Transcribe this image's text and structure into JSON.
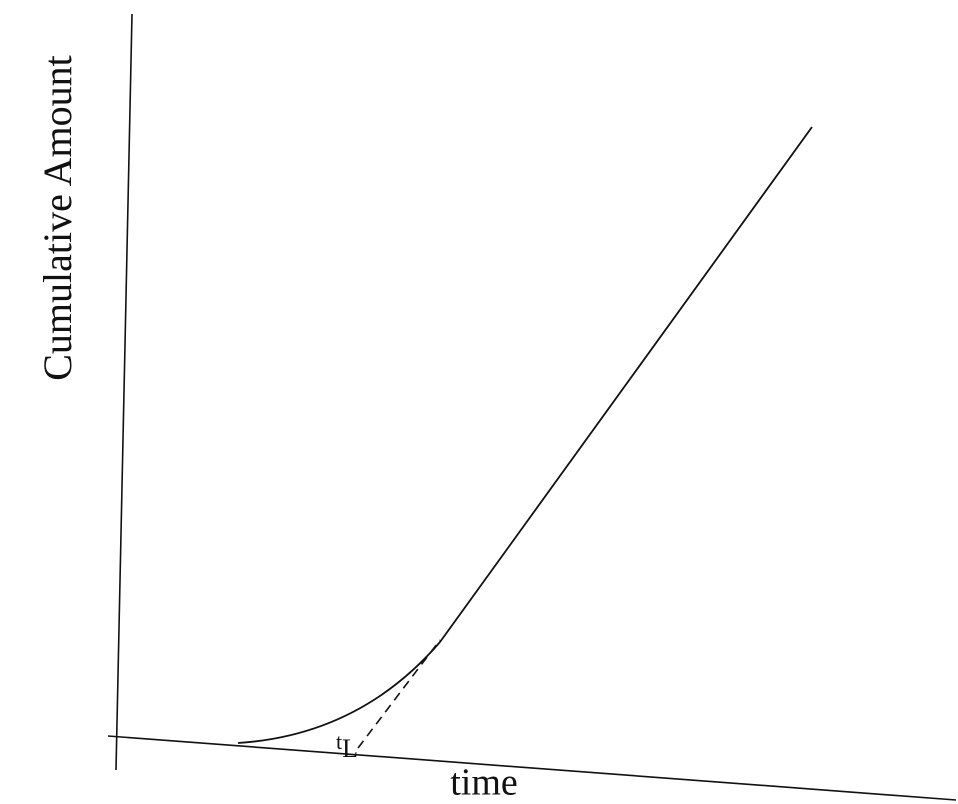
{
  "axes": {
    "y_label": "Cumulative Amount",
    "x_label": "time"
  },
  "markers": {
    "lag_time": {
      "symbol": "t",
      "subscript": "L"
    }
  }
}
